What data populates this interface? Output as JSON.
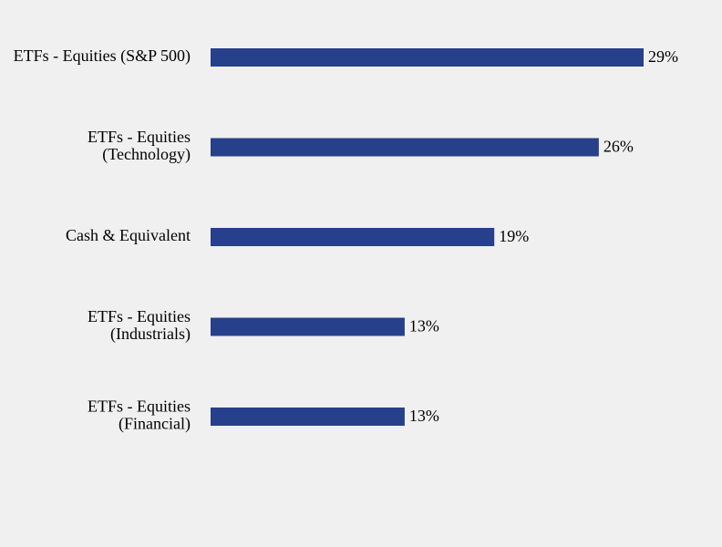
{
  "chart_data": {
    "type": "bar",
    "orientation": "horizontal",
    "categories": [
      "ETFs - Equities (S&P 500)",
      "ETFs - Equities\n(Technology)",
      "Cash & Equivalent",
      "ETFs - Equities\n(Industrials)",
      "ETFs - Equities\n(Financial)"
    ],
    "values": [
      29,
      26,
      19,
      13,
      13
    ],
    "value_labels": [
      "29%",
      "26%",
      "19%",
      "13%",
      "13%"
    ],
    "color": "#27408b"
  }
}
